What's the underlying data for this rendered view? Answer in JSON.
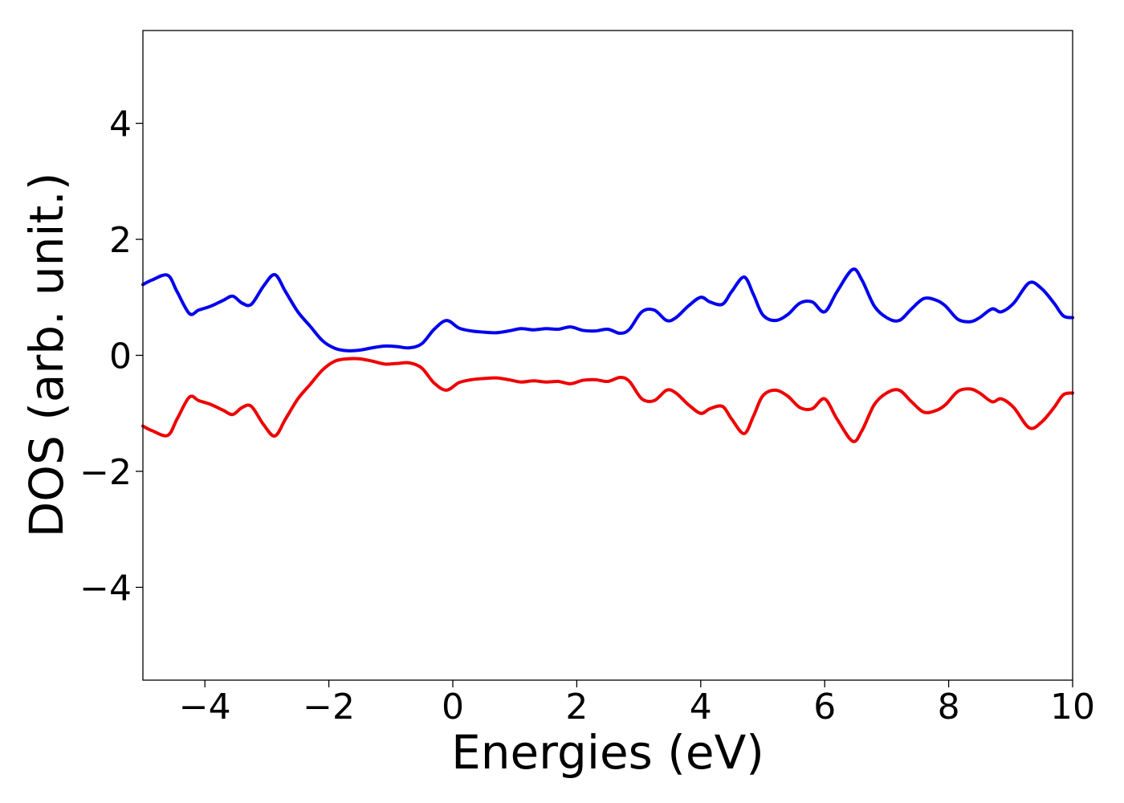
{
  "chart_data": {
    "type": "line",
    "title": "",
    "xlabel": "Energies (eV)",
    "ylabel": "DOS (arb. unit.)",
    "xlim": [
      -5,
      10
    ],
    "ylim": [
      -5.6,
      5.6
    ],
    "grid": false,
    "x_ticks": [
      -4,
      -2,
      0,
      2,
      4,
      6,
      8,
      10
    ],
    "x_tick_labels": [
      "−4",
      "−2",
      "0",
      "2",
      "4",
      "6",
      "8",
      "10"
    ],
    "y_ticks": [
      -4,
      -2,
      0,
      2,
      4
    ],
    "y_tick_labels": [
      "−4",
      "−2",
      "0",
      "2",
      "4"
    ],
    "x": [
      -5.0,
      -4.85,
      -4.6,
      -4.45,
      -4.25,
      -4.1,
      -3.9,
      -3.7,
      -3.55,
      -3.4,
      -3.25,
      -3.05,
      -2.87,
      -2.7,
      -2.5,
      -2.3,
      -2.1,
      -1.9,
      -1.7,
      -1.5,
      -1.3,
      -1.1,
      -0.9,
      -0.7,
      -0.5,
      -0.3,
      -0.1,
      0.1,
      0.3,
      0.5,
      0.7,
      0.9,
      1.1,
      1.3,
      1.5,
      1.7,
      1.9,
      2.1,
      2.3,
      2.5,
      2.7,
      2.85,
      3.05,
      3.25,
      3.45,
      3.6,
      3.8,
      4.0,
      4.15,
      4.35,
      4.5,
      4.7,
      4.85,
      5.0,
      5.2,
      5.4,
      5.6,
      5.8,
      6.0,
      6.2,
      6.45,
      6.6,
      6.8,
      7.0,
      7.2,
      7.4,
      7.6,
      7.8,
      7.95,
      8.15,
      8.35,
      8.5,
      8.7,
      8.85,
      9.05,
      9.3,
      9.5,
      9.7,
      9.85,
      10.0
    ],
    "series": [
      {
        "color": "#0000ee",
        "values": [
          1.22,
          1.3,
          1.38,
          1.1,
          0.72,
          0.78,
          0.85,
          0.95,
          1.02,
          0.9,
          0.88,
          1.2,
          1.39,
          1.1,
          0.75,
          0.5,
          0.25,
          0.12,
          0.08,
          0.09,
          0.13,
          0.16,
          0.15,
          0.13,
          0.2,
          0.45,
          0.6,
          0.47,
          0.42,
          0.4,
          0.39,
          0.42,
          0.46,
          0.44,
          0.46,
          0.45,
          0.49,
          0.43,
          0.42,
          0.45,
          0.38,
          0.45,
          0.75,
          0.78,
          0.6,
          0.65,
          0.85,
          1.0,
          0.92,
          0.88,
          1.1,
          1.35,
          1.05,
          0.7,
          0.6,
          0.7,
          0.9,
          0.92,
          0.75,
          1.1,
          1.48,
          1.3,
          0.85,
          0.65,
          0.6,
          0.8,
          0.98,
          0.95,
          0.85,
          0.62,
          0.58,
          0.65,
          0.8,
          0.75,
          0.9,
          1.25,
          1.15,
          0.9,
          0.68,
          0.65
        ]
      },
      {
        "color": "#ee0000",
        "values": [
          -1.22,
          -1.3,
          -1.38,
          -1.1,
          -0.72,
          -0.78,
          -0.85,
          -0.95,
          -1.02,
          -0.9,
          -0.88,
          -1.2,
          -1.39,
          -1.1,
          -0.75,
          -0.5,
          -0.25,
          -0.1,
          -0.06,
          -0.06,
          -0.1,
          -0.15,
          -0.14,
          -0.13,
          -0.22,
          -0.48,
          -0.6,
          -0.47,
          -0.42,
          -0.4,
          -0.39,
          -0.42,
          -0.46,
          -0.44,
          -0.46,
          -0.45,
          -0.49,
          -0.43,
          -0.42,
          -0.45,
          -0.38,
          -0.45,
          -0.75,
          -0.78,
          -0.6,
          -0.65,
          -0.85,
          -1.0,
          -0.92,
          -0.88,
          -1.1,
          -1.35,
          -1.05,
          -0.7,
          -0.6,
          -0.7,
          -0.9,
          -0.92,
          -0.75,
          -1.1,
          -1.48,
          -1.3,
          -0.85,
          -0.65,
          -0.6,
          -0.8,
          -0.98,
          -0.95,
          -0.85,
          -0.62,
          -0.58,
          -0.65,
          -0.8,
          -0.75,
          -0.9,
          -1.25,
          -1.15,
          -0.9,
          -0.68,
          -0.65
        ]
      }
    ]
  }
}
